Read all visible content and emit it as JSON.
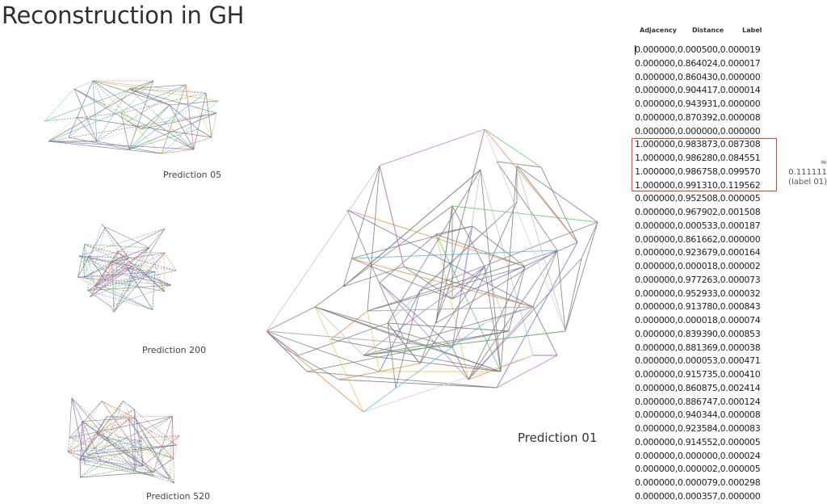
{
  "title": "Reconstruction in GH",
  "predictions": [
    {
      "id": "05",
      "label": "Prediction 05"
    },
    {
      "id": "200",
      "label": "Prediction 200"
    },
    {
      "id": "520",
      "label": "Prediction 520"
    },
    {
      "id": "01",
      "label": "Prediction 01"
    }
  ],
  "table": {
    "headers": [
      "Adjacency",
      "Distance",
      "Label"
    ],
    "rows": [
      "0.000000,0.000500,0.000019",
      "0.000000,0.864024,0.000017",
      "0.000000,0.860430,0.000000",
      "0.000000,0.904417,0.000014",
      "0.000000,0.943931,0.000000",
      "0.000000,0.870392,0.000008",
      "0.000000,0.000000,0.000000",
      "1.000000,0.983873,0.087308",
      "1.000000,0.986280,0.084551",
      "1.000000,0.986758,0.099570",
      "1.000000,0.991310,0.119562",
      "0.000000,0.952508,0.000005",
      "0.000000,0.967902,0.001508",
      "0.000000,0.000533,0.000187",
      "0.000000,0.861662,0.000000",
      "0.000000,0.923679,0.000164",
      "0.000000,0.000018,0.000002",
      "0.000000,0.977263,0.000073",
      "0.000000,0.952933,0.000032",
      "0.000000,0.913780,0.000843",
      "0.000000,0.000018,0.000074",
      "0.000000,0.839390,0.000853",
      "0.000000,0.881369,0.000038",
      "0.000000,0.000053,0.000471",
      "0.000000,0.915735,0.000410",
      "0.000000,0.860875,0.002414",
      "0.000000,0.886747,0.000124",
      "0.000000,0.940344,0.000008",
      "0.000000,0.923584,0.000083",
      "0.000000,0.914552,0.000005",
      "0.000000,0.000000,0.000024",
      "0.000000,0.000002,0.000005",
      "0.000000,0.000079,0.000298",
      "0.000000,0.000357,0.000000"
    ],
    "annotation_line1": "≈ 0.111111",
    "annotation_line2": "(label 01)"
  },
  "colors": {
    "highlight": "#e0452c",
    "edge_main": "#7a7a7a",
    "edge_palette": [
      "#e05a8a",
      "#6a6ad8",
      "#6cc070",
      "#e6c85a",
      "#e08a4a",
      "#5ab8d8",
      "#b07ad8",
      "#c0c0c0"
    ]
  }
}
